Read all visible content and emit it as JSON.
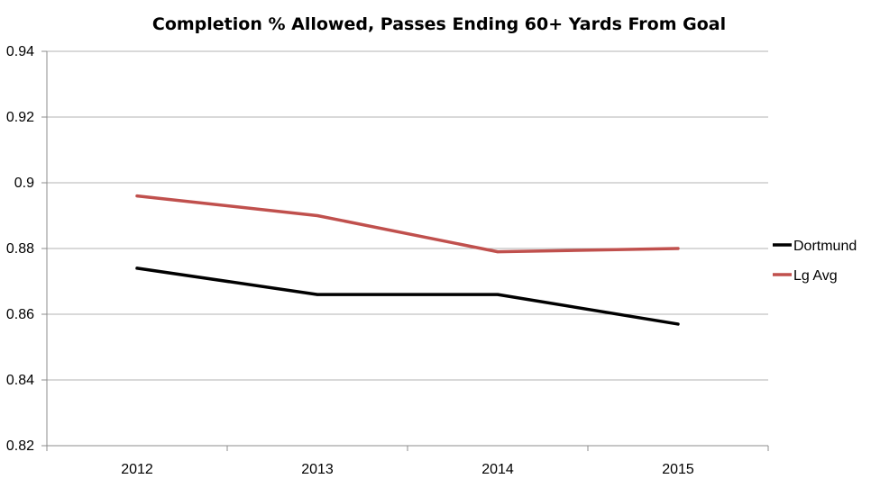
{
  "chart_data": {
    "type": "line",
    "title": "Completion % Allowed, Passes Ending 60+ Yards From Goal",
    "xlabel": "",
    "ylabel": "",
    "categories": [
      "2012",
      "2013",
      "2014",
      "2015"
    ],
    "series": [
      {
        "name": "Dortmund",
        "color": "#000000",
        "values": [
          0.874,
          0.866,
          0.866,
          0.857
        ]
      },
      {
        "name": "Lg Avg",
        "color": "#c0504d",
        "values": [
          0.896,
          0.89,
          0.879,
          0.88
        ]
      }
    ],
    "ylim": [
      0.82,
      0.94
    ],
    "yticks": [
      "0.82",
      "0.84",
      "0.86",
      "0.88",
      "0.9",
      "0.92",
      "0.94"
    ],
    "grid": true,
    "legend_position": "right"
  }
}
